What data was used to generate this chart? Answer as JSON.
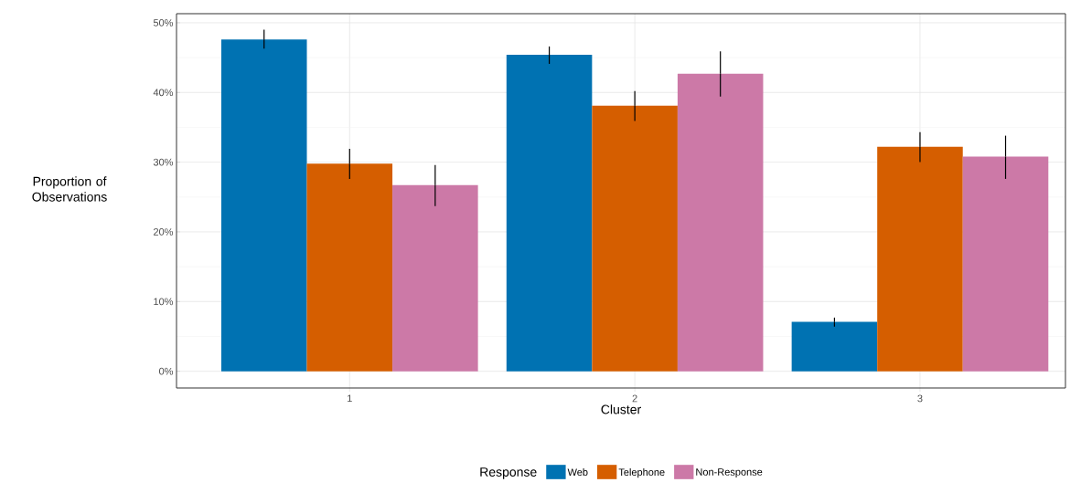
{
  "chart_data": {
    "type": "bar",
    "xlabel": "Cluster",
    "ylabel": "Proportion of Observations",
    "legend_title": "Response",
    "categories": [
      "1",
      "2",
      "3"
    ],
    "series": [
      {
        "name": "Web",
        "color": "#0072b2",
        "values": [
          47.6,
          45.4,
          7.1
        ],
        "errors": [
          [
            46.3,
            49.0
          ],
          [
            44.1,
            46.6
          ],
          [
            6.4,
            7.7
          ]
        ]
      },
      {
        "name": "Telephone",
        "color": "#d55e00",
        "values": [
          29.8,
          38.1,
          32.2
        ],
        "errors": [
          [
            27.6,
            31.9
          ],
          [
            35.9,
            40.2
          ],
          [
            30.0,
            34.3
          ]
        ]
      },
      {
        "name": "Non-Response",
        "color": "#cc79a7",
        "values": [
          26.7,
          42.7,
          30.8
        ],
        "errors": [
          [
            23.7,
            29.6
          ],
          [
            39.4,
            45.9
          ],
          [
            27.6,
            33.8
          ]
        ]
      }
    ],
    "ylim": [
      -2.4,
      51.3
    ],
    "yticks": [
      {
        "value": 0,
        "label": "0%"
      },
      {
        "value": 10,
        "label": "10%"
      },
      {
        "value": 20,
        "label": "20%"
      },
      {
        "value": 30,
        "label": "30%"
      },
      {
        "value": 40,
        "label": "40%"
      },
      {
        "value": 50,
        "label": "50%"
      }
    ],
    "grid": true,
    "legend": "bottom"
  }
}
